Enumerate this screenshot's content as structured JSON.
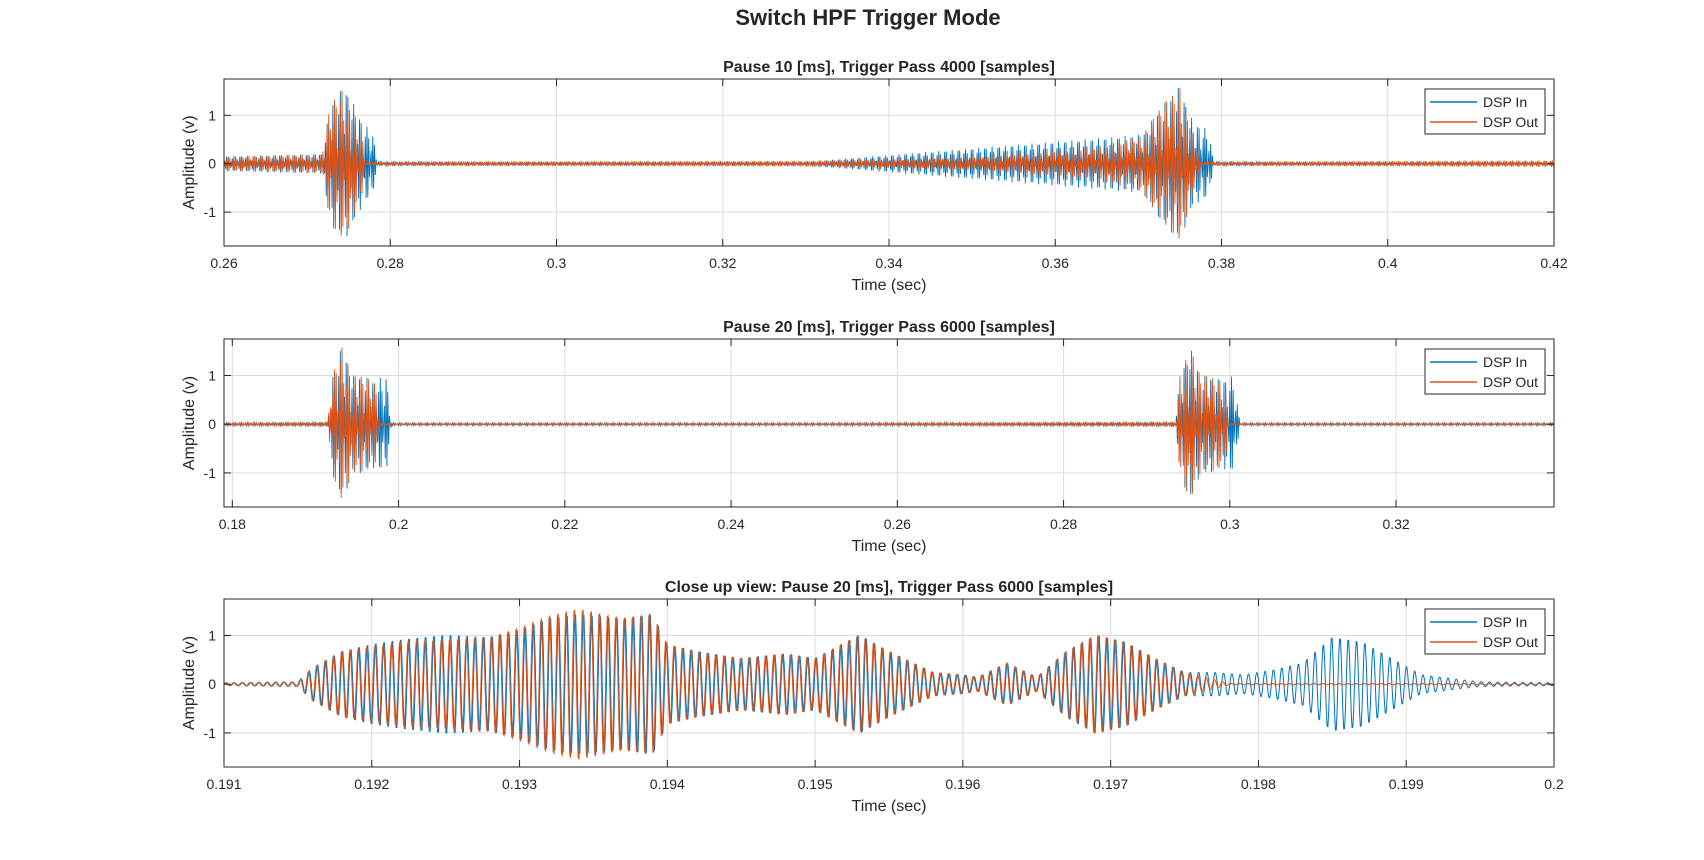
{
  "figure_title": "Switch HPF Trigger Mode",
  "colors": {
    "dsp_in": "#0072BD",
    "dsp_out": "#D95319",
    "grid": "#dcdcdc",
    "axes": "#262626",
    "background": "#ffffff"
  },
  "chart_data": [
    {
      "type": "line",
      "title": "Pause 10 [ms], Trigger Pass 4000 [samples]",
      "xlabel": "Time (sec)",
      "ylabel": "Amplitude (v)",
      "xlim": [
        0.26,
        0.42
      ],
      "ylim": [
        -1.7,
        1.75
      ],
      "xticks": [
        0.26,
        0.28,
        0.3,
        0.32,
        0.34,
        0.36,
        0.38,
        0.4,
        0.42
      ],
      "xtick_labels": [
        "0.26",
        "0.28",
        "0.3",
        "0.32",
        "0.34",
        "0.36",
        "0.38",
        "0.4",
        "0.42"
      ],
      "yticks": [
        -1,
        0,
        1
      ],
      "ytick_labels": [
        "-1",
        "0",
        "1"
      ],
      "grid": true,
      "legend": "top-right",
      "series": [
        {
          "name": "DSP In",
          "color": "#0072BD",
          "envelope": {
            "x": [
              0.26,
              0.2718,
              0.2728,
              0.2745,
              0.276,
              0.2768,
              0.2778,
              0.2785,
              0.29,
              0.33,
              0.3705,
              0.3728,
              0.375,
              0.3765,
              0.3772,
              0.3785,
              0.379,
              0.39,
              0.42
            ],
            "y": [
              0.15,
              0.2,
              1.25,
              1.6,
              1.1,
              0.8,
              0.7,
              0.05,
              0.04,
              0.04,
              0.6,
              1.2,
              1.6,
              0.9,
              0.8,
              0.7,
              0.05,
              0.04,
              0.04
            ]
          }
        },
        {
          "name": "DSP Out",
          "color": "#D95319",
          "envelope": {
            "x": [
              0.26,
              0.2718,
              0.2728,
              0.2745,
              0.276,
              0.2768,
              0.277,
              0.287,
              0.3,
              0.33,
              0.35,
              0.365,
              0.37,
              0.3705,
              0.3728,
              0.375,
              0.3765,
              0.3772,
              0.3775,
              0.39,
              0.42
            ],
            "y": [
              0.15,
              0.2,
              1.25,
              1.6,
              0.9,
              0.5,
              0.04,
              0.05,
              0.05,
              0.06,
              0.15,
              0.35,
              0.55,
              0.6,
              1.2,
              1.6,
              0.7,
              0.4,
              0.04,
              0.05,
              0.07
            ]
          }
        }
      ]
    },
    {
      "type": "line",
      "title": "Pause 20 [ms], Trigger Pass 6000 [samples]",
      "xlabel": "Time (sec)",
      "ylabel": "Amplitude (v)",
      "xlim": [
        0.179,
        0.339
      ],
      "ylim": [
        -1.7,
        1.75
      ],
      "xticks": [
        0.18,
        0.2,
        0.22,
        0.24,
        0.26,
        0.28,
        0.3,
        0.32
      ],
      "xtick_labels": [
        "0.18",
        "0.2",
        "0.22",
        "0.24",
        "0.26",
        "0.28",
        "0.3",
        "0.32"
      ],
      "yticks": [
        -1,
        0,
        1
      ],
      "ytick_labels": [
        "-1",
        "0",
        "1"
      ],
      "grid": true,
      "legend": "top-right",
      "series": [
        {
          "name": "DSP In",
          "color": "#0072BD",
          "envelope": {
            "x": [
              0.179,
              0.1915,
              0.192,
              0.1932,
              0.1945,
              0.1955,
              0.197,
              0.1985,
              0.1992,
              0.21,
              0.25,
              0.2935,
              0.294,
              0.2952,
              0.2965,
              0.2975,
              0.299,
              0.3005,
              0.3012,
              0.31,
              0.339
            ],
            "y": [
              0.03,
              0.05,
              1.0,
              1.6,
              1.0,
              1.0,
              0.9,
              1.0,
              0.03,
              0.03,
              0.03,
              0.05,
              1.0,
              1.6,
              1.0,
              1.0,
              0.9,
              1.0,
              0.03,
              0.03,
              0.03
            ]
          }
        },
        {
          "name": "DSP Out",
          "color": "#D95319",
          "envelope": {
            "x": [
              0.179,
              0.1915,
              0.192,
              0.1932,
              0.1945,
              0.1955,
              0.197,
              0.1976,
              0.1978,
              0.218,
              0.25,
              0.2935,
              0.294,
              0.2952,
              0.2965,
              0.2975,
              0.299,
              0.2996,
              0.2998,
              0.32,
              0.339
            ],
            "y": [
              0.03,
              0.05,
              1.0,
              1.6,
              1.0,
              1.0,
              0.9,
              0.6,
              0.02,
              0.02,
              0.02,
              0.05,
              1.0,
              1.6,
              1.0,
              1.0,
              0.9,
              0.6,
              0.02,
              0.02,
              0.02
            ]
          }
        }
      ]
    },
    {
      "type": "line",
      "title": "Close up view: Pause 20 [ms], Trigger Pass 6000 [samples]",
      "xlabel": "Time (sec)",
      "ylabel": "Amplitude (v)",
      "xlim": [
        0.191,
        0.2
      ],
      "ylim": [
        -1.7,
        1.75
      ],
      "xticks": [
        0.191,
        0.192,
        0.193,
        0.194,
        0.195,
        0.196,
        0.197,
        0.198,
        0.199,
        0.2
      ],
      "xtick_labels": [
        "0.191",
        "0.192",
        "0.193",
        "0.194",
        "0.195",
        "0.196",
        "0.197",
        "0.198",
        "0.199",
        "0.2"
      ],
      "yticks": [
        -1,
        0,
        1
      ],
      "ytick_labels": [
        "-1",
        "0",
        "1"
      ],
      "grid": true,
      "legend": "top-right",
      "series": [
        {
          "name": "DSP In",
          "color": "#0072BD",
          "envelope": {
            "x": [
              0.191,
              0.1915,
              0.1916,
              0.1918,
              0.192,
              0.1922,
              0.1925,
              0.1928,
              0.193,
              0.1932,
              0.1934,
              0.1937,
              0.1939,
              0.194,
              0.1942,
              0.1945,
              0.1948,
              0.195,
              0.1953,
              0.1955,
              0.1958,
              0.196,
              0.1961,
              0.1963,
              0.1965,
              0.1967,
              0.1969,
              0.1971,
              0.1973,
              0.1975,
              0.1977,
              0.1979,
              0.1981,
              0.1983,
              0.1985,
              0.1987,
              0.1989,
              0.1991,
              0.1993,
              0.1995,
              0.2
            ],
            "y": [
              0.03,
              0.05,
              0.35,
              0.7,
              0.85,
              0.95,
              1.05,
              1.0,
              1.15,
              1.4,
              1.5,
              1.4,
              1.5,
              0.85,
              0.7,
              0.55,
              0.65,
              0.55,
              1.05,
              0.7,
              0.25,
              0.2,
              0.15,
              0.45,
              0.15,
              0.7,
              1.05,
              0.9,
              0.55,
              0.25,
              0.25,
              0.2,
              0.3,
              0.45,
              1.0,
              0.9,
              0.55,
              0.2,
              0.12,
              0.05,
              0.03
            ]
          }
        },
        {
          "name": "DSP Out",
          "color": "#D95319",
          "envelope": {
            "x": [
              0.191,
              0.1915,
              0.1916,
              0.1918,
              0.192,
              0.1922,
              0.1925,
              0.1928,
              0.193,
              0.1932,
              0.1934,
              0.1937,
              0.1939,
              0.194,
              0.1942,
              0.1945,
              0.1948,
              0.195,
              0.1953,
              0.1955,
              0.1958,
              0.196,
              0.1961,
              0.1963,
              0.1965,
              0.1967,
              0.1969,
              0.1971,
              0.1973,
              0.1975,
              0.1977,
              0.1978,
              0.2
            ],
            "y": [
              0.03,
              0.05,
              0.35,
              0.7,
              0.8,
              0.9,
              0.95,
              1.0,
              1.2,
              1.45,
              1.6,
              1.4,
              1.5,
              0.85,
              0.7,
              0.55,
              0.65,
              0.55,
              1.05,
              0.7,
              0.25,
              0.2,
              0.15,
              0.45,
              0.15,
              0.7,
              1.05,
              0.9,
              0.55,
              0.25,
              0.1,
              0.015,
              0.015
            ]
          }
        }
      ]
    }
  ]
}
